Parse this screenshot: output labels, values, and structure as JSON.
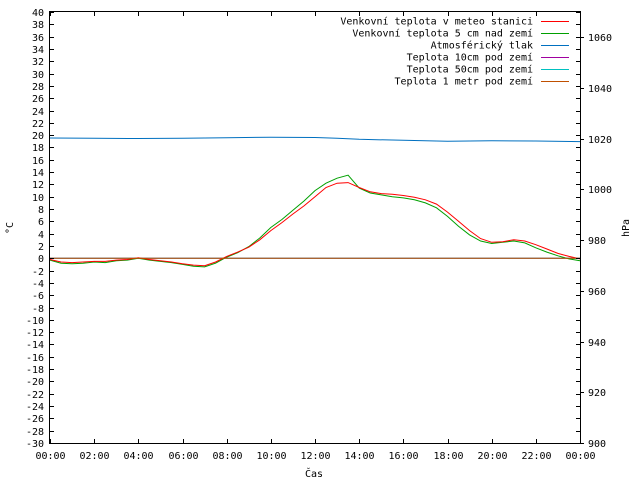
{
  "chart_data": {
    "type": "line",
    "title": "",
    "xlabel": "Čas",
    "ylabel": "°C",
    "y2label": "hPa",
    "x_ticks": [
      "00:00",
      "02:00",
      "04:00",
      "06:00",
      "08:00",
      "10:00",
      "12:00",
      "14:00",
      "16:00",
      "18:00",
      "20:00",
      "22:00",
      "00:00"
    ],
    "xlim_hours": [
      0,
      24
    ],
    "ylim": [
      -30,
      40
    ],
    "y_step": 2,
    "y2lim": [
      900,
      1070
    ],
    "y2_ticks": [
      900,
      920,
      940,
      960,
      980,
      1000,
      1020,
      1040,
      1060
    ],
    "grid": false,
    "legend_position": "top-right",
    "series": [
      {
        "name": "Venkovní teplota v meteo stanici",
        "color": "#ff0000",
        "axis": "left",
        "x": [
          0,
          0.5,
          1,
          1.5,
          2,
          2.5,
          3,
          3.5,
          4,
          4.5,
          5,
          5.5,
          6,
          6.5,
          7,
          7.5,
          8,
          8.5,
          9,
          9.5,
          10,
          10.5,
          11,
          11.5,
          12,
          12.5,
          13,
          13.5,
          14,
          14.5,
          15,
          15.5,
          16,
          16.5,
          17,
          17.5,
          18,
          18.5,
          19,
          19.5,
          20,
          20.5,
          21,
          21.5,
          22,
          22.5,
          23,
          23.5,
          24
        ],
        "values": [
          -0.2,
          -0.6,
          -0.7,
          -0.6,
          -0.5,
          -0.5,
          -0.3,
          -0.2,
          0.1,
          -0.2,
          -0.4,
          -0.6,
          -0.9,
          -1.1,
          -1.2,
          -0.6,
          0.3,
          1,
          1.8,
          3,
          4.5,
          5.8,
          7.2,
          8.5,
          10,
          11.5,
          12.2,
          12.3,
          11.5,
          10.8,
          10.5,
          10.4,
          10.2,
          9.9,
          9.5,
          8.8,
          7.5,
          6,
          4.5,
          3.2,
          2.6,
          2.7,
          3,
          2.8,
          2.2,
          1.5,
          0.8,
          0.3,
          -0.1
        ]
      },
      {
        "name": "Venkovní teplota 5 cm nad zemí",
        "color": "#00a000",
        "axis": "left",
        "x": [
          0,
          0.5,
          1,
          1.5,
          2,
          2.5,
          3,
          3.5,
          4,
          4.5,
          5,
          5.5,
          6,
          6.5,
          7,
          7.5,
          8,
          8.5,
          9,
          9.5,
          10,
          10.5,
          11,
          11.5,
          12,
          12.5,
          13,
          13.5,
          14,
          14.5,
          15,
          15.5,
          16,
          16.5,
          17,
          17.5,
          18,
          18.5,
          19,
          19.5,
          20,
          20.5,
          21,
          21.5,
          22,
          22.5,
          23,
          23.5,
          24
        ],
        "values": [
          -0.3,
          -0.8,
          -0.9,
          -0.8,
          -0.6,
          -0.7,
          -0.4,
          -0.3,
          0,
          -0.3,
          -0.5,
          -0.7,
          -1,
          -1.3,
          -1.4,
          -0.8,
          0.2,
          0.9,
          1.9,
          3.3,
          5,
          6.3,
          7.8,
          9.3,
          11,
          12.2,
          13,
          13.5,
          11.4,
          10.6,
          10.3,
          10,
          9.8,
          9.5,
          9,
          8.2,
          6.8,
          5.2,
          3.8,
          2.8,
          2.4,
          2.6,
          2.8,
          2.5,
          1.7,
          1,
          0.4,
          -0.1,
          -0.4
        ]
      },
      {
        "name": "Atmosférický tlak",
        "color": "#0070c0",
        "axis": "right",
        "x": [
          0,
          2,
          4,
          6,
          8,
          10,
          12,
          13,
          14,
          16,
          18,
          20,
          22,
          24
        ],
        "values": [
          1020.3,
          1020.2,
          1020.1,
          1020.2,
          1020.4,
          1020.6,
          1020.5,
          1020.2,
          1019.8,
          1019.4,
          1019,
          1019.2,
          1019.1,
          1018.9
        ]
      },
      {
        "name": "Teplota 10cm pod zemí",
        "color": "#a000a0",
        "axis": "left",
        "x": [
          0,
          24
        ],
        "values": [
          0,
          0
        ]
      },
      {
        "name": "Teplota 50cm pod zemí",
        "color": "#00c0c0",
        "axis": "left",
        "x": [
          0,
          24
        ],
        "values": [
          0,
          0
        ]
      },
      {
        "name": "Teplota 1 metr pod zemí",
        "color": "#c05000",
        "axis": "left",
        "x": [
          0,
          24
        ],
        "values": [
          0,
          0
        ]
      }
    ]
  }
}
